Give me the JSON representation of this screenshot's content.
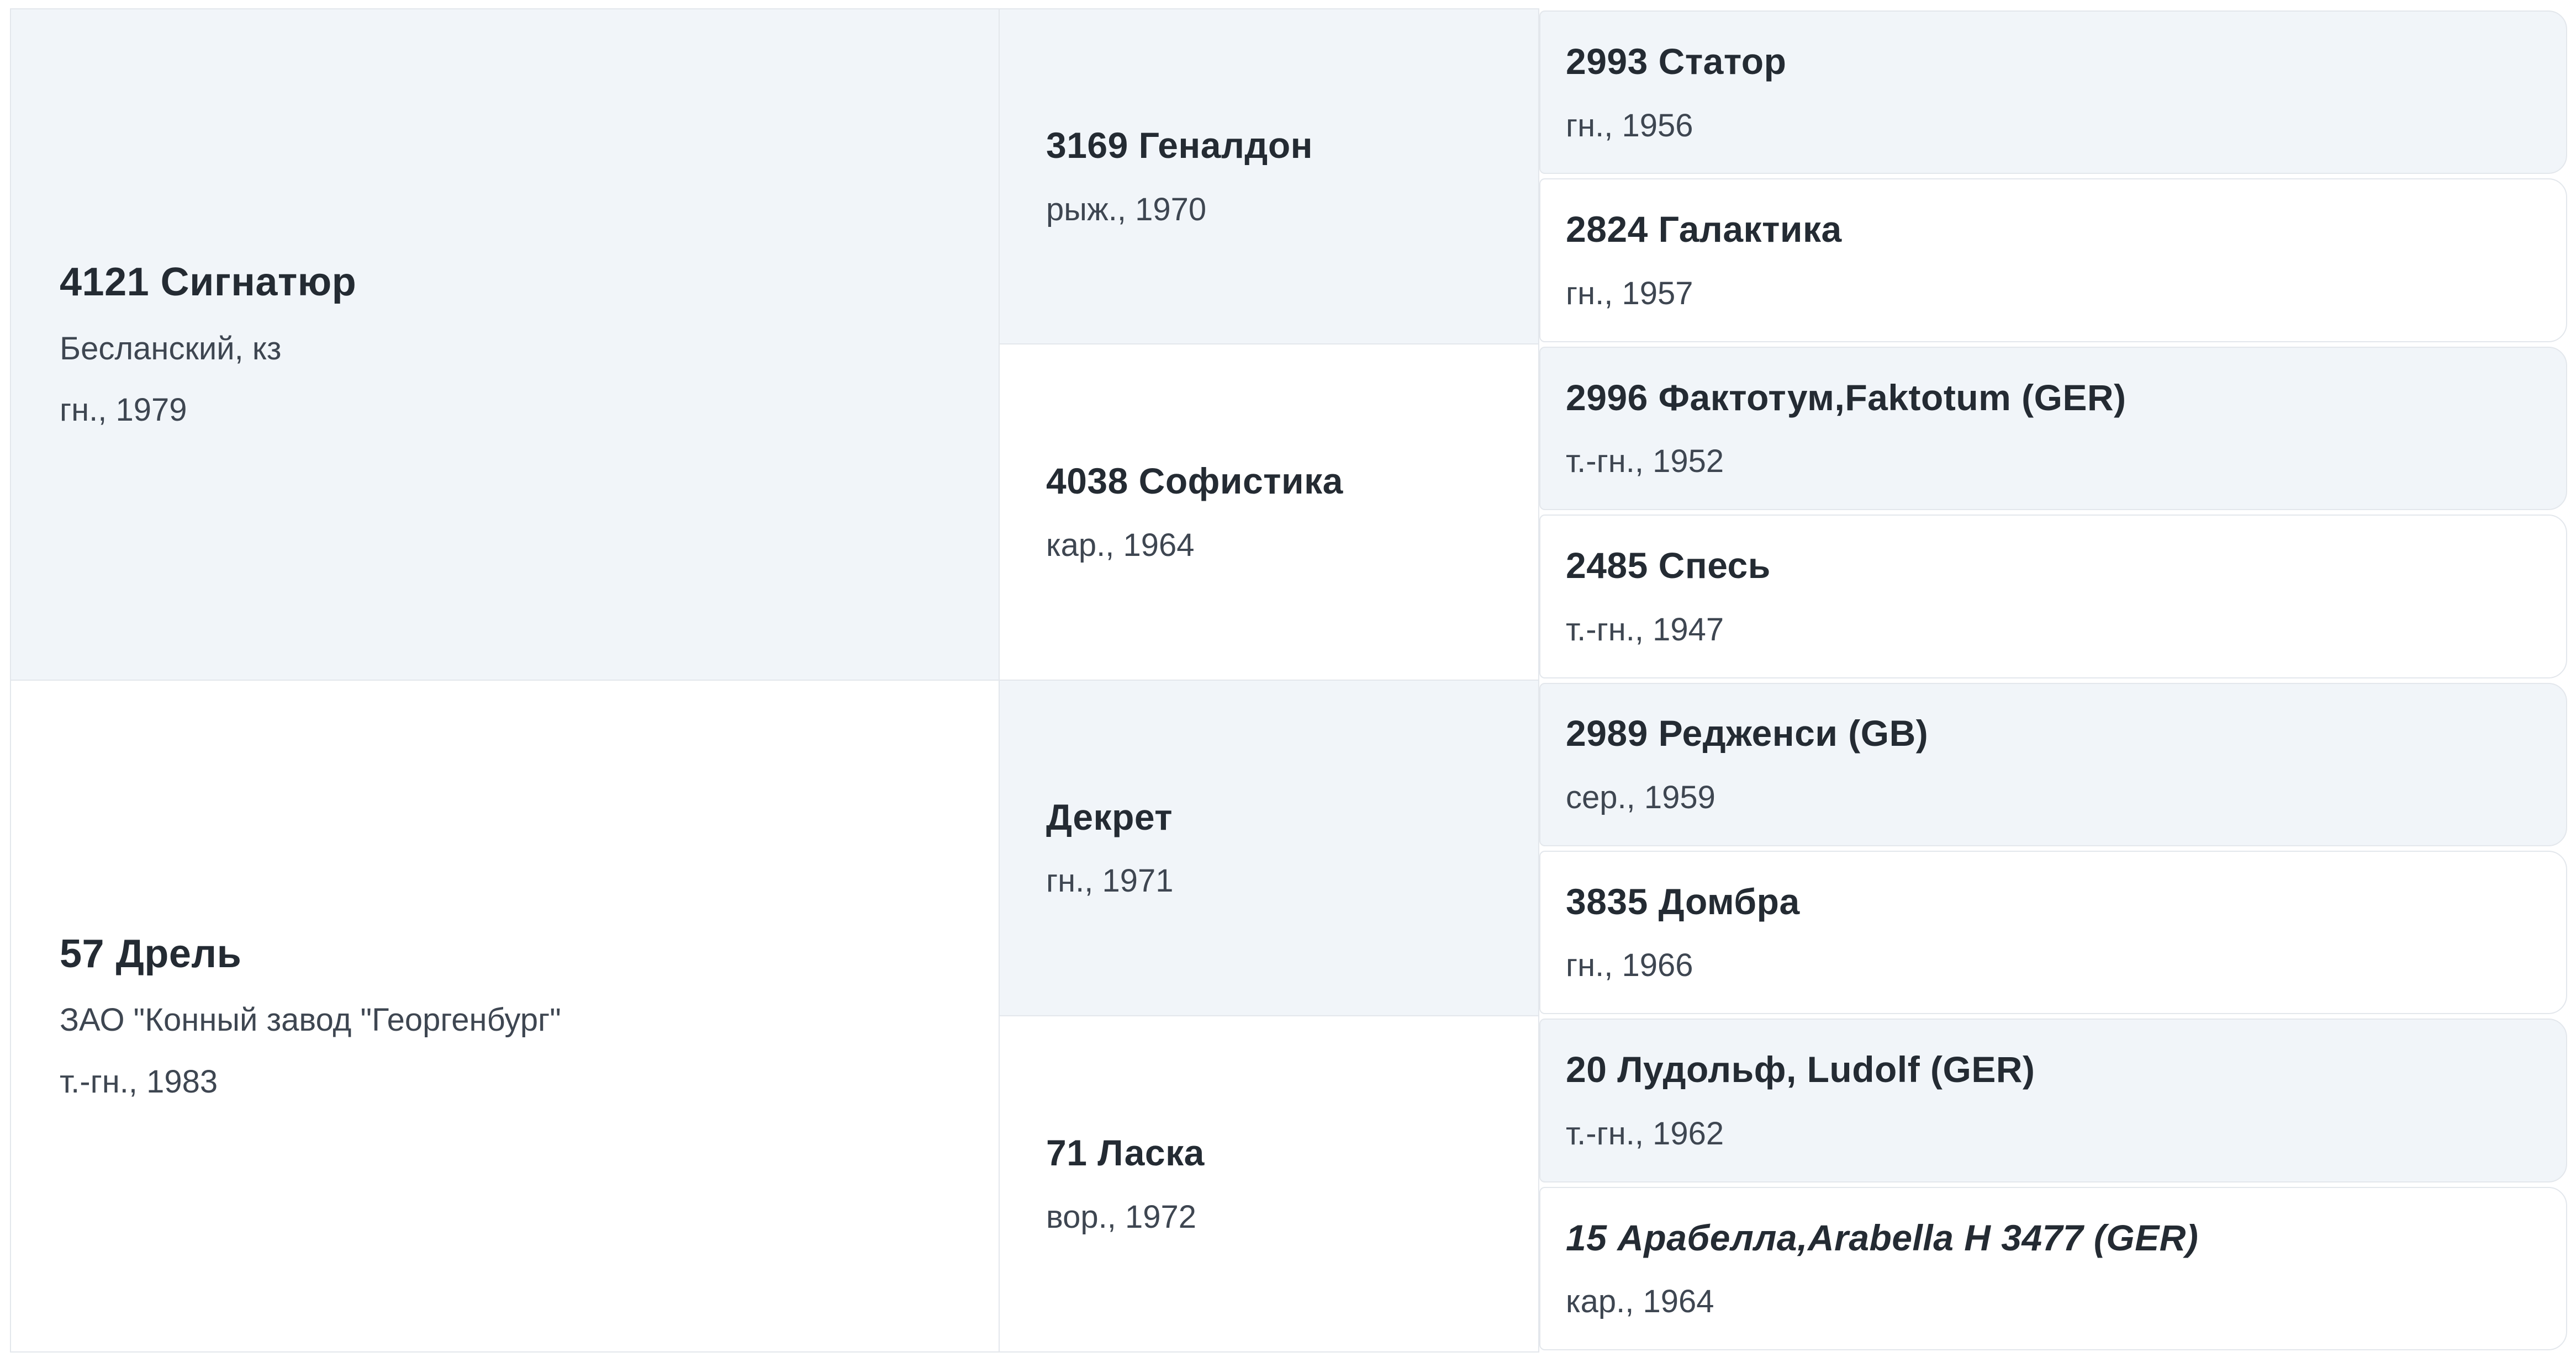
{
  "pedigree": {
    "gen1": [
      {
        "name": "4121 Сигнатюр",
        "breeder": "Бесланский, кз",
        "info": "гн., 1979",
        "shading": "shaded"
      },
      {
        "name": "57 Дрель",
        "breeder": "ЗАО \"Конный завод \"Георгенбург\"",
        "info": "т.-гн., 1983",
        "shading": "plain"
      }
    ],
    "gen2": [
      {
        "name": "3169 Геналдон",
        "info": "рыж., 1970",
        "shading": "shaded"
      },
      {
        "name": "4038 Софистика",
        "info": "кар., 1964",
        "shading": "plain"
      },
      {
        "name": "Декрет",
        "info": "гн., 1971",
        "shading": "shaded"
      },
      {
        "name": "71 Ласка",
        "info": "вор., 1972",
        "shading": "plain"
      }
    ],
    "gen3": [
      {
        "name": "2993 Статор",
        "info": "гн., 1956",
        "shading": "shaded"
      },
      {
        "name": "2824 Галактика",
        "info": "гн., 1957",
        "shading": "plain"
      },
      {
        "name": "2996 Фактотум,Faktotum (GER)",
        "info": "т.-гн., 1952",
        "shading": "shaded"
      },
      {
        "name": "2485 Спесь",
        "info": "т.-гн., 1947",
        "shading": "plain"
      },
      {
        "name": "2989 Редженси (GB)",
        "info": "сер., 1959",
        "shading": "shaded"
      },
      {
        "name": "3835 Домбра",
        "info": "гн., 1966",
        "shading": "plain"
      },
      {
        "name": "20 Лудольф, Ludolf (GER)",
        "info": "т.-гн., 1962",
        "shading": "shaded"
      },
      {
        "name": "15 Арабелла,Arabella H 3477 (GER)",
        "info": "кар., 1964",
        "shading": "plain",
        "italic": true
      }
    ],
    "colors": {
      "shaded_bg": "#f1f5f9",
      "plain_bg": "#ffffff",
      "border": "#e3e7ec",
      "title_text": "#242b33",
      "sub_text": "#3e4651"
    }
  }
}
